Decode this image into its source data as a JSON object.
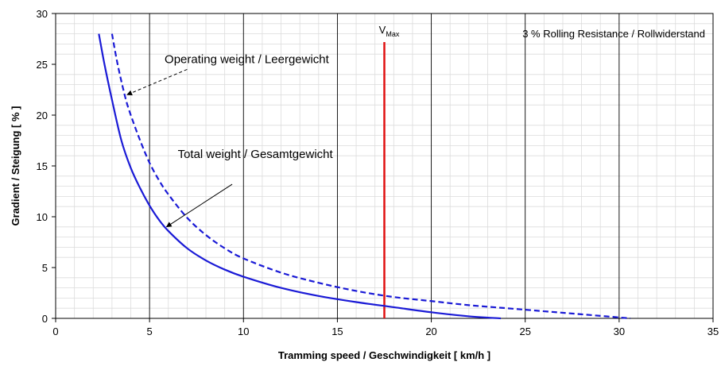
{
  "chart_data": {
    "type": "line",
    "title": "",
    "xlabel": "Tramming speed / Geschwindigkeit [ km/h ]",
    "ylabel": "Gradient / Steigung [ % ]",
    "xlim": [
      0,
      35
    ],
    "ylim": [
      0,
      30
    ],
    "xticks": [
      0,
      5,
      10,
      15,
      20,
      25,
      30,
      35
    ],
    "yticks": [
      0,
      5,
      10,
      15,
      20,
      25,
      30
    ],
    "grid": "major and minor",
    "series": [
      {
        "name": "Total weight / Gesamtgewicht",
        "style": "solid",
        "color": "#1a1ad6",
        "x": [
          2.3,
          2.6,
          3.0,
          3.5,
          4.0,
          4.5,
          5.0,
          5.5,
          6.0,
          7.0,
          8.0,
          9.0,
          10.0,
          12.0,
          14.0,
          16.0,
          18.0,
          20.0,
          22.0,
          23.7
        ],
        "y": [
          28.0,
          25.0,
          21.5,
          17.5,
          14.8,
          12.8,
          11.1,
          9.7,
          8.6,
          6.9,
          5.7,
          4.8,
          4.1,
          3.0,
          2.2,
          1.6,
          1.1,
          0.6,
          0.2,
          0.0
        ]
      },
      {
        "name": "Operating weight / Leergewicht",
        "style": "dashed",
        "color": "#1a1ad6",
        "x": [
          3.0,
          3.3,
          3.7,
          4.0,
          4.5,
          5.0,
          5.5,
          6.0,
          7.0,
          8.0,
          9.0,
          10.0,
          12.0,
          14.0,
          16.0,
          18.0,
          20.0,
          22.0,
          24.0,
          26.0,
          28.0,
          30.6
        ],
        "y": [
          28.0,
          25.0,
          21.8,
          20.0,
          17.5,
          15.3,
          13.6,
          12.2,
          9.9,
          8.2,
          6.9,
          5.9,
          4.5,
          3.5,
          2.7,
          2.1,
          1.7,
          1.3,
          1.0,
          0.7,
          0.4,
          0.0
        ]
      }
    ],
    "vmax": {
      "x": 17.5,
      "label_main": "V",
      "label_sub": "Max",
      "color": "#e01010"
    },
    "annotations": {
      "operating": {
        "text": "Operating weight / Leergewicht",
        "text_x": 5.8,
        "text_y": 25.1,
        "arrow_from": [
          7.0,
          24.5
        ],
        "arrow_to": [
          3.8,
          22.0
        ]
      },
      "total": {
        "text": "Total weight / Gesamtgewicht",
        "text_x": 6.5,
        "text_y": 15.8,
        "arrow_from": [
          9.4,
          13.2
        ],
        "arrow_to": [
          5.9,
          9.0
        ]
      },
      "note": "3 % Rolling Resistance / Rollwiderstand"
    }
  }
}
